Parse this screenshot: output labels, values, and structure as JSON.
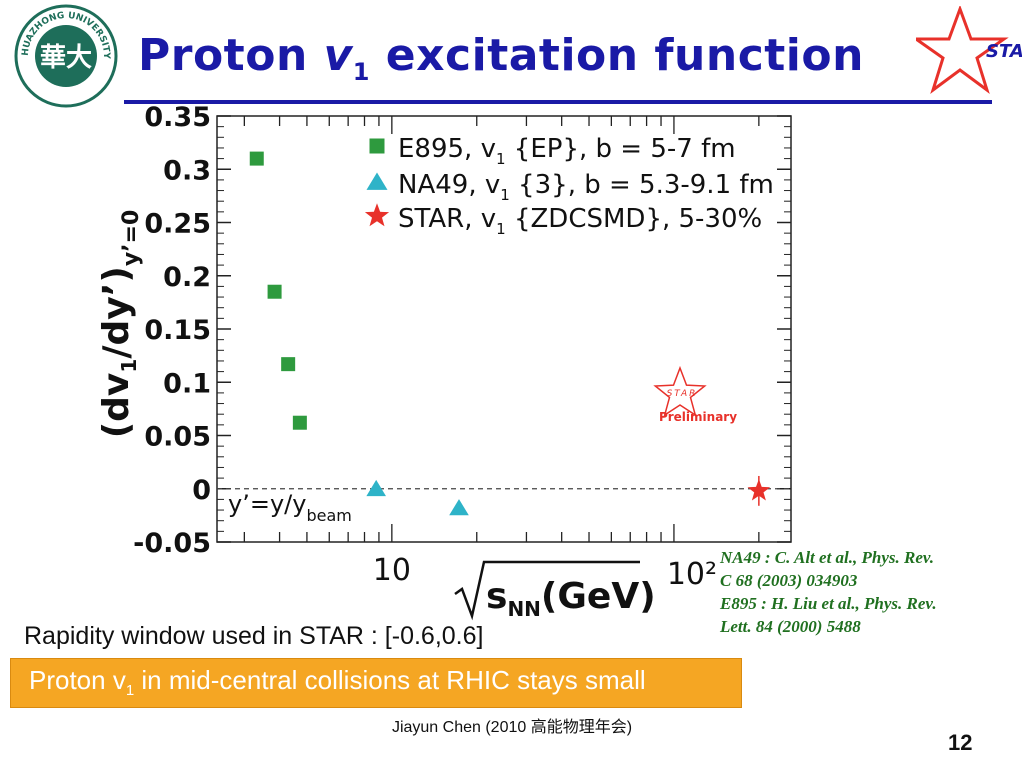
{
  "slide": {
    "title_pre": "Proton ",
    "title_v": "v",
    "title_sub": "1",
    "title_post": " excitation function",
    "logo_ring_text": "HUAZHONG UNIVERSITY",
    "logo_center": "華大",
    "star_logo_text": "STAR",
    "colors": {
      "title": "#1a1aa6",
      "banner": "#f5a623",
      "refs": "#207020"
    }
  },
  "chart_data": {
    "type": "scatter",
    "title": "",
    "xlabel": "√s_NN(GeV)",
    "ylabel": "(dv1/dy')_{y'=0}",
    "x_scale": "log",
    "xlim": [
      2.4,
      260
    ],
    "ylim": [
      -0.05,
      0.35
    ],
    "y_ticks": [
      "-0.05",
      "0",
      "0.05",
      "0.1",
      "0.15",
      "0.2",
      "0.25",
      "0.3",
      "0.35"
    ],
    "x_tick_labels": [
      "10",
      "10²"
    ],
    "grid": false,
    "legend_position": "top-right",
    "dashed_zero_line": true,
    "series": [
      {
        "name": "E895, v1{EP}, b = 5-7 fm",
        "legend_main": "E895, v",
        "legend_sub": "1",
        "legend_tail": " {EP}, b = 5-7 fm",
        "marker": "square",
        "color": "#2e9a3e",
        "x": [
          3.32,
          3.84,
          4.29,
          4.72
        ],
        "y": [
          0.31,
          0.185,
          0.117,
          0.062
        ]
      },
      {
        "name": "NA49, v1{3}, b = 5.3-9.1 fm",
        "legend_main": "NA49, v",
        "legend_sub": "1",
        "legend_tail": " {3}, b = 5.3-9.1 fm",
        "marker": "triangle",
        "color": "#2eb3c8",
        "x": [
          8.8,
          17.3
        ],
        "y": [
          0.0,
          -0.018
        ]
      },
      {
        "name": "STAR, v1{ZDCSMD}, 5-30%",
        "legend_main": "STAR, v",
        "legend_sub": "1",
        "legend_tail": " {ZDCSMD}, 5-30%",
        "marker": "star",
        "color": "#e8312a",
        "x": [
          200
        ],
        "y": [
          -0.002
        ],
        "err": [
          0.014
        ]
      }
    ],
    "annotation_y_beam": "y’=y/y",
    "annotation_y_beam_sub": "beam",
    "preliminary_star": "STAR",
    "preliminary_label": "Preliminary"
  },
  "references": [
    "NA49 : C. Alt et al., Phys. Rev.",
    "C 68 (2003) 034903",
    "E895 : H. Liu et al., Phys. Rev.",
    "Lett. 84 (2000) 5488"
  ],
  "rapidity_text": "Rapidity window used in STAR : [-0.6,0.6]",
  "banner": {
    "pre": "Proton v",
    "sub": "1",
    "post": " in mid-central collisions at RHIC stays small"
  },
  "footer": "Jiayun Chen (2010 高能物理年会)",
  "page_number": "12"
}
